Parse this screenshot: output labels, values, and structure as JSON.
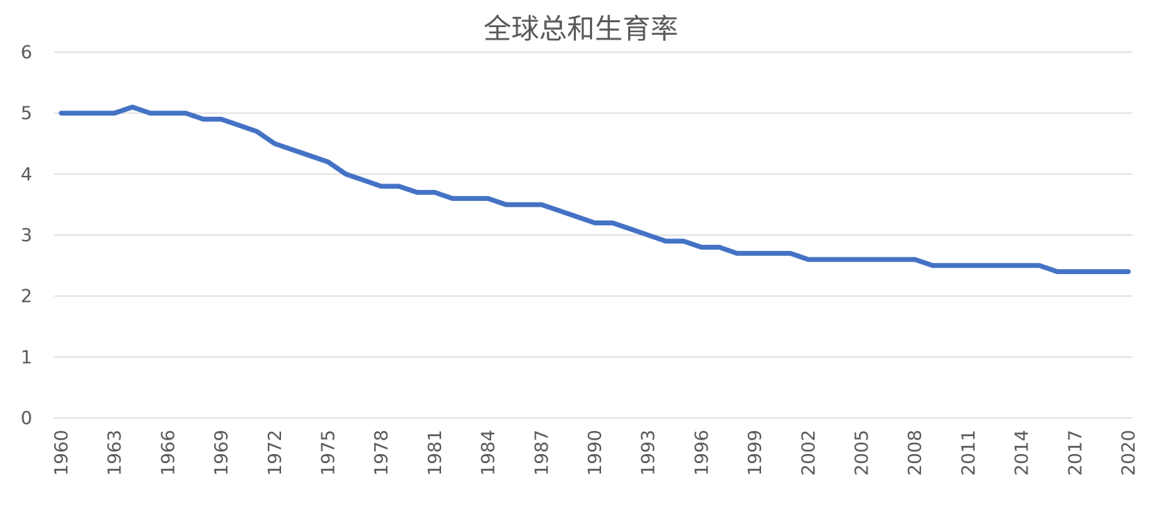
{
  "chart_data": {
    "type": "line",
    "title": "全球总和生育率",
    "xlabel": "",
    "ylabel": "",
    "ylim": [
      0,
      6
    ],
    "yticks": [
      0,
      1,
      2,
      3,
      4,
      5,
      6
    ],
    "xtick_labels": [
      "1960",
      "1963",
      "1966",
      "1969",
      "1972",
      "1975",
      "1978",
      "1981",
      "1984",
      "1987",
      "1990",
      "1993",
      "1996",
      "1999",
      "2002",
      "2005",
      "2008",
      "2011",
      "2014",
      "2017",
      "2020"
    ],
    "grid": "horizontal",
    "legend": "none",
    "color": "#4472c4",
    "x": [
      1960,
      1961,
      1962,
      1963,
      1964,
      1965,
      1966,
      1967,
      1968,
      1969,
      1970,
      1971,
      1972,
      1973,
      1974,
      1975,
      1976,
      1977,
      1978,
      1979,
      1980,
      1981,
      1982,
      1983,
      1984,
      1985,
      1986,
      1987,
      1988,
      1989,
      1990,
      1991,
      1992,
      1993,
      1994,
      1995,
      1996,
      1997,
      1998,
      1999,
      2000,
      2001,
      2002,
      2003,
      2004,
      2005,
      2006,
      2007,
      2008,
      2009,
      2010,
      2011,
      2012,
      2013,
      2014,
      2015,
      2016,
      2017,
      2018,
      2019,
      2020
    ],
    "series": [
      {
        "values": [
          5.0,
          5.0,
          5.0,
          5.0,
          5.1,
          5.0,
          5.0,
          5.0,
          4.9,
          4.9,
          4.8,
          4.7,
          4.5,
          4.4,
          4.3,
          4.2,
          4.0,
          3.9,
          3.8,
          3.8,
          3.7,
          3.7,
          3.6,
          3.6,
          3.6,
          3.5,
          3.5,
          3.5,
          3.4,
          3.3,
          3.2,
          3.2,
          3.1,
          3.0,
          2.9,
          2.9,
          2.8,
          2.8,
          2.7,
          2.7,
          2.7,
          2.7,
          2.6,
          2.6,
          2.6,
          2.6,
          2.6,
          2.6,
          2.6,
          2.5,
          2.5,
          2.5,
          2.5,
          2.5,
          2.5,
          2.5,
          2.4,
          2.4,
          2.4,
          2.4,
          2.4
        ]
      }
    ]
  }
}
